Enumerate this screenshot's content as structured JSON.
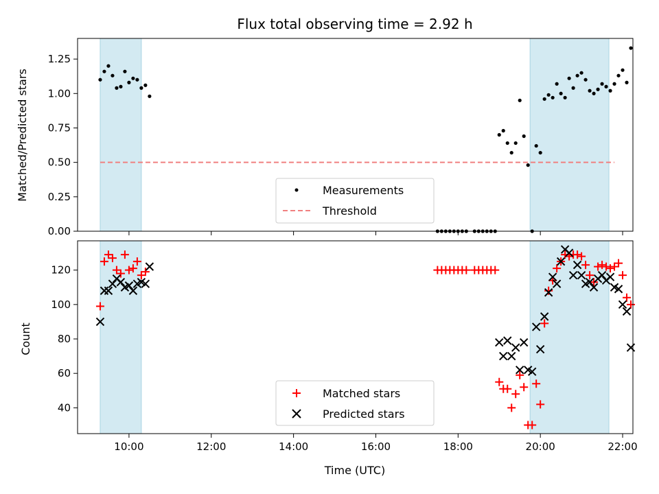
{
  "chart_data": [
    {
      "type": "scatter",
      "title": "Flux total observing time = 2.92 h",
      "xlabel": "",
      "ylabel": "Matched/Predicted stars",
      "xlim": [
        "08:45",
        "22:15"
      ],
      "ylim": [
        0,
        1.4
      ],
      "yticks": [
        0.0,
        0.25,
        0.5,
        0.75,
        1.0,
        1.25
      ],
      "ytick_labels": [
        "0.00",
        "0.25",
        "0.50",
        "0.75",
        "1.00",
        "1.25"
      ],
      "xticks": [
        "10:00",
        "12:00",
        "14:00",
        "16:00",
        "18:00",
        "20:00",
        "22:00"
      ],
      "show_xtick_labels": false,
      "grid": false,
      "legend_position": "lower-center",
      "highlight_spans": [
        [
          "09:18",
          "10:18"
        ],
        [
          "19:45",
          "21:40"
        ]
      ],
      "highlight_color": "#d3eaf2",
      "series": [
        {
          "name": "Measurements",
          "kind": "dot",
          "color": "#000000",
          "points": [
            [
              "09:18",
              1.1
            ],
            [
              "09:24",
              1.16
            ],
            [
              "09:30",
              1.2
            ],
            [
              "09:36",
              1.13
            ],
            [
              "09:42",
              1.04
            ],
            [
              "09:48",
              1.05
            ],
            [
              "09:54",
              1.16
            ],
            [
              "10:00",
              1.08
            ],
            [
              "10:06",
              1.11
            ],
            [
              "10:12",
              1.1
            ],
            [
              "10:18",
              1.04
            ],
            [
              "10:24",
              1.06
            ],
            [
              "10:30",
              0.98
            ],
            [
              "17:30",
              0.0
            ],
            [
              "17:36",
              0.0
            ],
            [
              "17:42",
              0.0
            ],
            [
              "17:48",
              0.0
            ],
            [
              "17:54",
              0.0
            ],
            [
              "18:00",
              0.0
            ],
            [
              "18:06",
              0.0
            ],
            [
              "18:12",
              0.0
            ],
            [
              "18:24",
              0.0
            ],
            [
              "18:30",
              0.0
            ],
            [
              "18:36",
              0.0
            ],
            [
              "18:42",
              0.0
            ],
            [
              "18:48",
              0.0
            ],
            [
              "18:54",
              0.0
            ],
            [
              "19:00",
              0.7
            ],
            [
              "19:06",
              0.73
            ],
            [
              "19:12",
              0.64
            ],
            [
              "19:18",
              0.57
            ],
            [
              "19:24",
              0.64
            ],
            [
              "19:30",
              0.95
            ],
            [
              "19:36",
              0.69
            ],
            [
              "19:42",
              0.48
            ],
            [
              "19:48",
              0.0
            ],
            [
              "19:54",
              0.62
            ],
            [
              "20:00",
              0.57
            ],
            [
              "20:06",
              0.96
            ],
            [
              "20:12",
              0.99
            ],
            [
              "20:18",
              0.97
            ],
            [
              "20:24",
              1.07
            ],
            [
              "20:30",
              1.0
            ],
            [
              "20:36",
              0.97
            ],
            [
              "20:42",
              1.11
            ],
            [
              "20:48",
              1.04
            ],
            [
              "20:54",
              1.13
            ],
            [
              "21:00",
              1.15
            ],
            [
              "21:06",
              1.1
            ],
            [
              "21:12",
              1.02
            ],
            [
              "21:18",
              1.0
            ],
            [
              "21:24",
              1.03
            ],
            [
              "21:30",
              1.07
            ],
            [
              "21:36",
              1.05
            ],
            [
              "21:42",
              1.02
            ],
            [
              "21:48",
              1.07
            ],
            [
              "21:54",
              1.13
            ],
            [
              "22:00",
              1.17
            ],
            [
              "22:06",
              1.08
            ],
            [
              "22:12",
              1.33
            ]
          ]
        },
        {
          "name": "Threshold",
          "kind": "dashed-line",
          "color": "#f08080",
          "points": [
            [
              "09:18",
              0.5
            ],
            [
              "21:48",
              0.5
            ]
          ]
        }
      ]
    },
    {
      "type": "scatter",
      "title": "",
      "xlabel": "Time (UTC)",
      "ylabel": "Count",
      "xlim": [
        "08:45",
        "22:15"
      ],
      "ylim": [
        25,
        137
      ],
      "yticks": [
        40,
        60,
        80,
        100,
        120
      ],
      "ytick_labels": [
        "40",
        "60",
        "80",
        "100",
        "120"
      ],
      "xticks": [
        "10:00",
        "12:00",
        "14:00",
        "16:00",
        "18:00",
        "20:00",
        "22:00"
      ],
      "xtick_labels": [
        "10:00",
        "12:00",
        "14:00",
        "16:00",
        "18:00",
        "20:00",
        "22:00"
      ],
      "grid": false,
      "legend_position": "lower-center",
      "highlight_spans": [
        [
          "09:18",
          "10:18"
        ],
        [
          "19:45",
          "21:40"
        ]
      ],
      "highlight_color": "#d3eaf2",
      "series": [
        {
          "name": "Matched stars",
          "kind": "plus",
          "color": "#ff0000",
          "points": [
            [
              "09:18",
              99
            ],
            [
              "09:24",
              125
            ],
            [
              "09:30",
              129
            ],
            [
              "09:36",
              127
            ],
            [
              "09:42",
              120
            ],
            [
              "09:48",
              118
            ],
            [
              "09:54",
              129
            ],
            [
              "10:00",
              120
            ],
            [
              "10:06",
              121
            ],
            [
              "10:12",
              125
            ],
            [
              "10:18",
              117
            ],
            [
              "10:24",
              119
            ],
            [
              "17:30",
              120
            ],
            [
              "17:36",
              120
            ],
            [
              "17:42",
              120
            ],
            [
              "17:48",
              120
            ],
            [
              "17:54",
              120
            ],
            [
              "18:00",
              120
            ],
            [
              "18:06",
              120
            ],
            [
              "18:12",
              120
            ],
            [
              "18:24",
              120
            ],
            [
              "18:30",
              120
            ],
            [
              "18:36",
              120
            ],
            [
              "18:42",
              120
            ],
            [
              "18:48",
              120
            ],
            [
              "18:54",
              120
            ],
            [
              "19:00",
              55
            ],
            [
              "19:06",
              51
            ],
            [
              "19:12",
              51
            ],
            [
              "19:18",
              40
            ],
            [
              "19:24",
              48
            ],
            [
              "19:30",
              59
            ],
            [
              "19:36",
              52
            ],
            [
              "19:42",
              30
            ],
            [
              "19:48",
              30
            ],
            [
              "19:54",
              54
            ],
            [
              "20:00",
              42
            ],
            [
              "20:06",
              89
            ],
            [
              "20:12",
              108
            ],
            [
              "20:18",
              114
            ],
            [
              "20:24",
              121
            ],
            [
              "20:30",
              125
            ],
            [
              "20:36",
              129
            ],
            [
              "20:42",
              128
            ],
            [
              "20:48",
              129
            ],
            [
              "20:54",
              129
            ],
            [
              "21:00",
              128
            ],
            [
              "21:06",
              123
            ],
            [
              "21:12",
              117
            ],
            [
              "21:18",
              113
            ],
            [
              "21:24",
              122
            ],
            [
              "21:30",
              123
            ],
            [
              "21:36",
              122
            ],
            [
              "21:42",
              121
            ],
            [
              "21:48",
              122
            ],
            [
              "21:54",
              124
            ],
            [
              "22:00",
              117
            ],
            [
              "22:06",
              104
            ],
            [
              "22:12",
              100
            ]
          ]
        },
        {
          "name": "Predicted stars",
          "kind": "cross",
          "color": "#000000",
          "points": [
            [
              "09:18",
              90
            ],
            [
              "09:24",
              108
            ],
            [
              "09:30",
              108
            ],
            [
              "09:36",
              112
            ],
            [
              "09:42",
              115
            ],
            [
              "09:48",
              113
            ],
            [
              "09:54",
              110
            ],
            [
              "10:00",
              111
            ],
            [
              "10:06",
              108
            ],
            [
              "10:12",
              112
            ],
            [
              "10:18",
              113
            ],
            [
              "10:24",
              112
            ],
            [
              "10:30",
              122
            ],
            [
              "19:00",
              78
            ],
            [
              "19:06",
              70
            ],
            [
              "19:12",
              79
            ],
            [
              "19:18",
              70
            ],
            [
              "19:24",
              75
            ],
            [
              "19:30",
              62
            ],
            [
              "19:36",
              78
            ],
            [
              "19:42",
              62
            ],
            [
              "19:48",
              61
            ],
            [
              "19:54",
              87
            ],
            [
              "20:00",
              74
            ],
            [
              "20:06",
              93
            ],
            [
              "20:12",
              107
            ],
            [
              "20:18",
              116
            ],
            [
              "20:24",
              112
            ],
            [
              "20:30",
              125
            ],
            [
              "20:36",
              132
            ],
            [
              "20:42",
              130
            ],
            [
              "20:48",
              117
            ],
            [
              "20:54",
              123
            ],
            [
              "21:00",
              117
            ],
            [
              "21:06",
              112
            ],
            [
              "21:12",
              113
            ],
            [
              "21:18",
              110
            ],
            [
              "21:24",
              115
            ],
            [
              "21:30",
              117
            ],
            [
              "21:36",
              114
            ],
            [
              "21:42",
              116
            ],
            [
              "21:48",
              110
            ],
            [
              "21:54",
              109
            ],
            [
              "22:00",
              100
            ],
            [
              "22:06",
              96
            ],
            [
              "22:12",
              75
            ]
          ]
        }
      ]
    }
  ]
}
